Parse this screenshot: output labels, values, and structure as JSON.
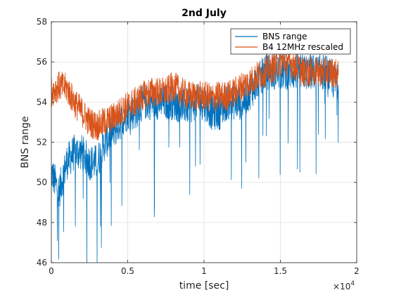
{
  "chart_data": {
    "type": "line",
    "title": "2nd July",
    "xlabel": "time [sec]",
    "ylabel": "BNS range",
    "x_exponent_base": "×10",
    "x_exponent_power": "4",
    "xlim": [
      0,
      2
    ],
    "ylim": [
      46,
      58
    ],
    "x_ticks": [
      "0",
      "0.5",
      "1",
      "1.5",
      "2"
    ],
    "y_ticks": [
      "46",
      "48",
      "50",
      "52",
      "54",
      "56",
      "58"
    ],
    "grid": true,
    "legend_position": "top-right",
    "series": [
      {
        "name": "BNS range",
        "color": "#0072BD",
        "x": [
          0.0,
          0.05,
          0.1,
          0.15,
          0.2,
          0.25,
          0.3,
          0.35,
          0.4,
          0.45,
          0.5,
          0.55,
          0.6,
          0.65,
          0.7,
          0.75,
          0.8,
          0.85,
          0.9,
          0.95,
          1.0,
          1.05,
          1.1,
          1.15,
          1.2,
          1.25,
          1.3,
          1.35,
          1.4,
          1.45,
          1.5,
          1.55,
          1.6,
          1.65,
          1.7,
          1.75,
          1.8,
          1.85,
          1.88
        ],
        "y": [
          50.5,
          49.5,
          51.0,
          51.5,
          51.5,
          51.0,
          51.0,
          52.0,
          52.5,
          53.0,
          53.5,
          53.5,
          54.0,
          54.0,
          54.0,
          54.0,
          54.0,
          53.8,
          53.8,
          54.0,
          54.0,
          53.5,
          53.5,
          54.0,
          54.0,
          54.0,
          54.5,
          55.0,
          55.5,
          55.5,
          55.5,
          55.5,
          55.5,
          55.5,
          55.5,
          55.5,
          55.5,
          55.0,
          55.0
        ]
      },
      {
        "name": "B4 12MHz rescaled",
        "color": "#D95319",
        "x": [
          0.0,
          0.05,
          0.1,
          0.15,
          0.2,
          0.25,
          0.3,
          0.35,
          0.4,
          0.45,
          0.5,
          0.55,
          0.6,
          0.65,
          0.7,
          0.75,
          0.8,
          0.85,
          0.9,
          0.95,
          1.0,
          1.05,
          1.1,
          1.15,
          1.2,
          1.25,
          1.3,
          1.35,
          1.4,
          1.45,
          1.5,
          1.55,
          1.6,
          1.65,
          1.7,
          1.75,
          1.8,
          1.85,
          1.88
        ],
        "y": [
          54.5,
          54.8,
          54.7,
          54.0,
          53.5,
          53.0,
          52.8,
          53.0,
          53.2,
          53.5,
          53.8,
          54.0,
          54.3,
          54.5,
          54.5,
          54.5,
          54.8,
          54.5,
          54.3,
          54.3,
          54.3,
          54.2,
          54.3,
          54.3,
          54.5,
          54.8,
          55.0,
          55.3,
          55.5,
          55.7,
          56.0,
          56.0,
          55.8,
          55.5,
          55.5,
          55.5,
          55.5,
          55.5,
          55.3
        ]
      }
    ]
  }
}
